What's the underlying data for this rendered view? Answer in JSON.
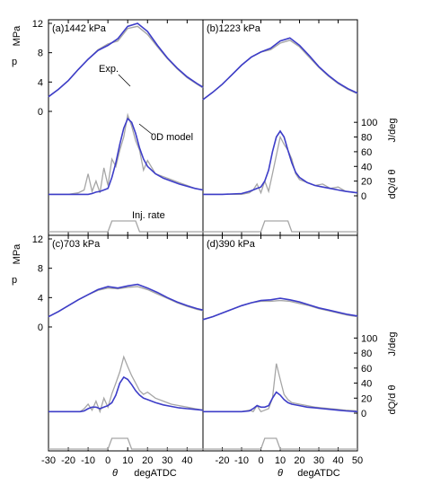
{
  "colors": {
    "exp": "#a6a6a6",
    "model": "#3d3dc8",
    "axis": "#000000"
  },
  "labels": {
    "p": "p",
    "mpa": "MPa",
    "jdeg": "J/deg",
    "dq": "dQ/d θ",
    "theta": "θ",
    "degatdc": "degATDC",
    "exp": "Exp.",
    "model": "0D model",
    "inj": "Inj. rate"
  },
  "chart_data": {
    "type": "line",
    "x_axis": {
      "label": "degATDC",
      "range": [
        -30,
        50
      ],
      "ticks": [
        -30,
        -20,
        -10,
        0,
        10,
        20,
        30,
        40,
        50
      ]
    },
    "p_axis_ticks": [
      0,
      4,
      8,
      12
    ],
    "hrr_axis_ticks": [
      0,
      20,
      40,
      60,
      80,
      100
    ],
    "panels": [
      {
        "id": "a",
        "title": "(a)1442 kPa",
        "pressure": {
          "x": [
            -30,
            -25,
            -20,
            -15,
            -10,
            -5,
            0,
            5,
            10,
            15,
            20,
            25,
            30,
            35,
            40,
            45,
            48
          ],
          "exp": [
            2.0,
            3.0,
            4.2,
            5.7,
            7.1,
            8.4,
            9.2,
            9.6,
            11.3,
            11.6,
            10.5,
            8.8,
            7.2,
            5.8,
            4.6,
            3.7,
            3.2
          ],
          "model": [
            2.0,
            3.0,
            4.2,
            5.7,
            7.1,
            8.3,
            9.0,
            9.9,
            11.6,
            12.0,
            10.9,
            9.0,
            7.3,
            5.9,
            4.7,
            3.8,
            3.3
          ]
        },
        "hrr": {
          "x": [
            -30,
            -20,
            -15,
            -12,
            -10,
            -8,
            -6,
            -4,
            -2,
            0,
            2,
            4,
            6,
            8,
            10,
            12,
            14,
            16,
            18,
            20,
            24,
            28,
            32,
            36,
            40,
            44,
            48
          ],
          "exp": [
            2,
            2,
            4,
            8,
            30,
            6,
            20,
            4,
            38,
            14,
            50,
            40,
            62,
            80,
            110,
            95,
            75,
            62,
            35,
            48,
            30,
            26,
            22,
            18,
            14,
            10,
            8
          ],
          "model": [
            2,
            2,
            2,
            2,
            2,
            3,
            5,
            6,
            8,
            10,
            25,
            45,
            70,
            92,
            105,
            100,
            85,
            65,
            50,
            40,
            30,
            24,
            20,
            16,
            13,
            10,
            8
          ]
        },
        "injection": {
          "x": [
            -30,
            0,
            2,
            14,
            16,
            48
          ],
          "rate": [
            0,
            0,
            1,
            1,
            0,
            0
          ]
        }
      },
      {
        "id": "b",
        "title": "(b)1223 kPa",
        "pressure": {
          "x": [
            -30,
            -25,
            -20,
            -15,
            -10,
            -5,
            0,
            5,
            10,
            15,
            20,
            25,
            30,
            35,
            40,
            45,
            50
          ],
          "exp": [
            1.6,
            2.6,
            3.7,
            5.0,
            6.3,
            7.4,
            8.1,
            8.4,
            9.3,
            9.7,
            8.8,
            7.4,
            6.0,
            4.8,
            3.8,
            3.0,
            2.4
          ],
          "model": [
            1.6,
            2.6,
            3.7,
            5.0,
            6.3,
            7.4,
            8.1,
            8.6,
            9.6,
            10.0,
            9.0,
            7.6,
            6.1,
            4.9,
            3.9,
            3.1,
            2.5
          ]
        },
        "hrr": {
          "x": [
            -30,
            -20,
            -10,
            -6,
            -4,
            -2,
            0,
            2,
            4,
            6,
            8,
            10,
            12,
            14,
            16,
            18,
            20,
            24,
            28,
            32,
            36,
            40,
            44,
            50
          ],
          "exp": [
            2,
            2,
            2,
            4,
            8,
            16,
            4,
            20,
            6,
            30,
            55,
            80,
            70,
            62,
            50,
            30,
            22,
            18,
            14,
            16,
            10,
            12,
            6,
            4
          ],
          "model": [
            2,
            2,
            3,
            6,
            8,
            10,
            12,
            20,
            35,
            60,
            80,
            88,
            80,
            62,
            45,
            32,
            25,
            18,
            14,
            12,
            10,
            8,
            6,
            4
          ]
        },
        "injection": {
          "x": [
            -30,
            0,
            2,
            14,
            16,
            50
          ],
          "rate": [
            0,
            0,
            1,
            1,
            0,
            0
          ]
        }
      },
      {
        "id": "c",
        "title": "(c)703 kPa",
        "pressure": {
          "x": [
            -30,
            -25,
            -20,
            -15,
            -10,
            -5,
            0,
            5,
            10,
            15,
            20,
            25,
            30,
            35,
            40,
            45,
            48
          ],
          "exp": [
            1.4,
            2.1,
            2.9,
            3.7,
            4.4,
            5.0,
            5.3,
            5.2,
            5.4,
            5.5,
            5.1,
            4.5,
            3.9,
            3.3,
            2.8,
            2.4,
            2.2
          ],
          "model": [
            1.4,
            2.1,
            2.9,
            3.7,
            4.4,
            5.1,
            5.5,
            5.3,
            5.6,
            5.8,
            5.3,
            4.7,
            4.0,
            3.4,
            2.9,
            2.5,
            2.3
          ]
        },
        "hrr": {
          "x": [
            -30,
            -20,
            -14,
            -12,
            -10,
            -8,
            -6,
            -4,
            -2,
            0,
            2,
            4,
            6,
            8,
            10,
            12,
            14,
            16,
            18,
            20,
            24,
            28,
            32,
            36,
            40,
            44,
            48
          ],
          "exp": [
            2,
            2,
            2,
            6,
            12,
            4,
            16,
            2,
            20,
            8,
            26,
            40,
            55,
            75,
            62,
            50,
            40,
            30,
            25,
            28,
            20,
            16,
            12,
            10,
            8,
            6,
            4
          ],
          "model": [
            2,
            2,
            2,
            3,
            6,
            8,
            8,
            6,
            8,
            10,
            14,
            24,
            40,
            48,
            45,
            38,
            30,
            24,
            20,
            18,
            14,
            11,
            9,
            7,
            6,
            5,
            4
          ]
        },
        "injection": {
          "x": [
            -30,
            0,
            2,
            10,
            12,
            48
          ],
          "rate": [
            0,
            0,
            1,
            1,
            0,
            0
          ]
        }
      },
      {
        "id": "d",
        "title": "(d)390 kPa",
        "pressure": {
          "x": [
            -30,
            -25,
            -20,
            -15,
            -10,
            -5,
            0,
            5,
            10,
            15,
            20,
            25,
            30,
            35,
            40,
            45,
            50
          ],
          "exp": [
            1.0,
            1.4,
            1.9,
            2.4,
            2.9,
            3.3,
            3.5,
            3.5,
            3.6,
            3.5,
            3.2,
            2.9,
            2.5,
            2.2,
            1.9,
            1.6,
            1.4
          ],
          "model": [
            1.0,
            1.4,
            1.9,
            2.4,
            2.9,
            3.3,
            3.6,
            3.7,
            3.9,
            3.7,
            3.4,
            3.0,
            2.6,
            2.3,
            2.0,
            1.7,
            1.5
          ]
        },
        "hrr": {
          "x": [
            -30,
            -20,
            -10,
            -6,
            -4,
            -2,
            0,
            2,
            4,
            6,
            8,
            10,
            12,
            14,
            16,
            20,
            24,
            28,
            32,
            36,
            40,
            44,
            50
          ],
          "exp": [
            2,
            2,
            2,
            4,
            2,
            10,
            2,
            4,
            6,
            20,
            66,
            45,
            25,
            18,
            14,
            12,
            10,
            8,
            7,
            6,
            5,
            4,
            3
          ],
          "model": [
            2,
            2,
            2,
            3,
            6,
            10,
            8,
            8,
            10,
            20,
            28,
            24,
            18,
            14,
            12,
            10,
            8,
            7,
            6,
            5,
            4,
            3,
            2
          ]
        },
        "injection": {
          "x": [
            -30,
            0,
            2,
            8,
            10,
            50
          ],
          "rate": [
            0,
            0,
            1,
            1,
            0,
            0
          ]
        }
      }
    ]
  }
}
